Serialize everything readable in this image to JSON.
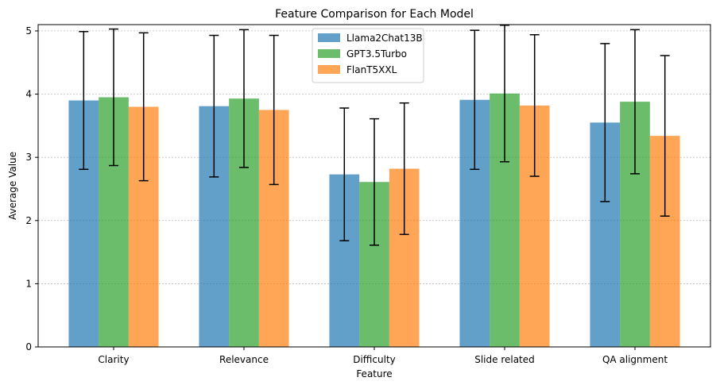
{
  "chart_data": {
    "type": "bar",
    "title": "Feature Comparison for Each Model",
    "xlabel": "Feature",
    "ylabel": "Average Value",
    "ylim": [
      0,
      5.1
    ],
    "yticks": [
      0,
      1,
      2,
      3,
      4,
      5
    ],
    "grid": "y-dotted",
    "legend_position": "top-center",
    "categories": [
      "Clarity",
      "Relevance",
      "Difficulty",
      "Slide related",
      "QA alignment"
    ],
    "series": [
      {
        "name": "Llama2Chat13B",
        "color": "#1f77b4",
        "values": [
          3.9,
          3.81,
          2.73,
          3.91,
          3.55
        ],
        "errors": [
          1.09,
          1.12,
          1.05,
          1.1,
          1.25
        ]
      },
      {
        "name": "GPT3.5Turbo",
        "color": "#2ca02c",
        "values": [
          3.95,
          3.93,
          2.61,
          4.01,
          3.88
        ],
        "errors": [
          1.08,
          1.09,
          1.0,
          1.08,
          1.14
        ]
      },
      {
        "name": "FlanT5XXL",
        "color": "#ff7f0e",
        "values": [
          3.8,
          3.75,
          2.82,
          3.82,
          3.34
        ],
        "errors": [
          1.17,
          1.18,
          1.04,
          1.12,
          1.27
        ]
      }
    ]
  }
}
